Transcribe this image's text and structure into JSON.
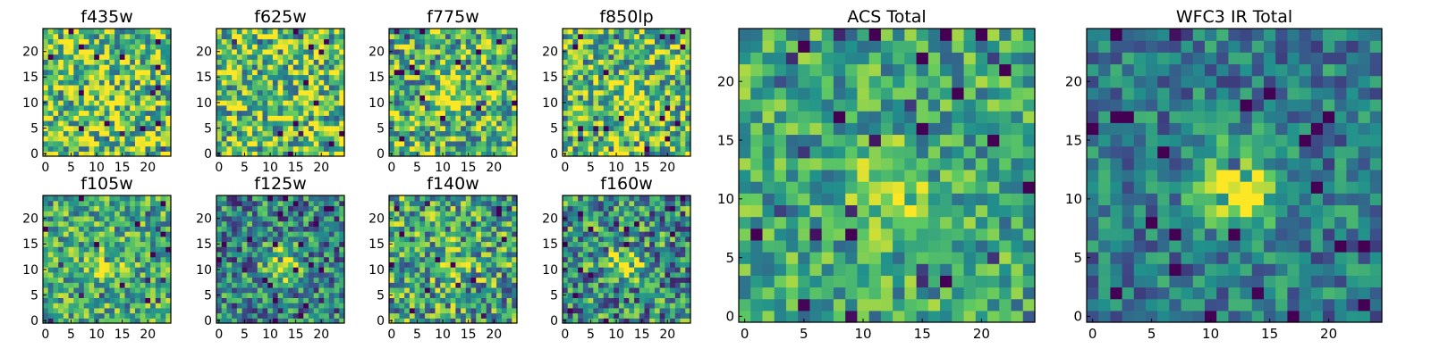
{
  "colors": {
    "colormap": [
      "#440154",
      "#3b528b",
      "#21918c",
      "#5ec962",
      "#fde725"
    ],
    "frame": "#000000",
    "background": "#ffffff"
  },
  "chart_data": [
    {
      "type": "heatmap",
      "title": "f435w",
      "grid_size": 25,
      "xlim": [
        0,
        24
      ],
      "ylim": [
        0,
        24
      ],
      "xticks": [
        "0",
        "5",
        "10",
        "15",
        "20"
      ],
      "yticks": [
        "0",
        "5",
        "10",
        "15",
        "20"
      ],
      "grid": false,
      "colormap": "viridis",
      "source_peak": [
        12,
        11
      ],
      "peak_strength": 0.05,
      "background_level": 0.75,
      "noise": 0.55
    },
    {
      "type": "heatmap",
      "title": "f625w",
      "grid_size": 25,
      "xlim": [
        0,
        24
      ],
      "ylim": [
        0,
        24
      ],
      "xticks": [
        "0",
        "5",
        "10",
        "15",
        "20"
      ],
      "yticks": [
        "0",
        "5",
        "10",
        "15",
        "20"
      ],
      "grid": false,
      "colormap": "viridis",
      "source_peak": [
        12,
        11
      ],
      "peak_strength": 0.08,
      "background_level": 0.72,
      "noise": 0.55
    },
    {
      "type": "heatmap",
      "title": "f775w",
      "grid_size": 25,
      "xlim": [
        0,
        24
      ],
      "ylim": [
        0,
        24
      ],
      "xticks": [
        "0",
        "5",
        "10",
        "15",
        "20"
      ],
      "yticks": [
        "0",
        "5",
        "10",
        "15",
        "20"
      ],
      "grid": false,
      "colormap": "viridis",
      "source_peak": [
        12,
        11
      ],
      "peak_strength": 0.3,
      "background_level": 0.65,
      "noise": 0.5
    },
    {
      "type": "heatmap",
      "title": "f850lp",
      "grid_size": 25,
      "xlim": [
        0,
        24
      ],
      "ylim": [
        0,
        24
      ],
      "xticks": [
        "0",
        "5",
        "10",
        "15",
        "20"
      ],
      "yticks": [
        "0",
        "5",
        "10",
        "15",
        "20"
      ],
      "grid": false,
      "colormap": "viridis",
      "source_peak": [
        13,
        11
      ],
      "peak_strength": 0.3,
      "background_level": 0.68,
      "noise": 0.5
    },
    {
      "type": "heatmap",
      "title": "f105w",
      "grid_size": 25,
      "xlim": [
        0,
        24
      ],
      "ylim": [
        0,
        24
      ],
      "xticks": [
        "0",
        "5",
        "10",
        "15",
        "20"
      ],
      "yticks": [
        "0",
        "5",
        "10",
        "15",
        "20"
      ],
      "grid": false,
      "colormap": "viridis",
      "source_peak": [
        12,
        11
      ],
      "peak_strength": 0.35,
      "background_level": 0.62,
      "noise": 0.4
    },
    {
      "type": "heatmap",
      "title": "f125w",
      "grid_size": 25,
      "xlim": [
        0,
        24
      ],
      "ylim": [
        0,
        24
      ],
      "xticks": [
        "0",
        "5",
        "10",
        "15",
        "20"
      ],
      "yticks": [
        "0",
        "5",
        "10",
        "15",
        "20"
      ],
      "grid": false,
      "colormap": "viridis",
      "source_peak": [
        12,
        11
      ],
      "peak_strength": 0.6,
      "background_level": 0.45,
      "noise": 0.45
    },
    {
      "type": "heatmap",
      "title": "f140w",
      "grid_size": 25,
      "xlim": [
        0,
        24
      ],
      "ylim": [
        0,
        24
      ],
      "xticks": [
        "0",
        "5",
        "10",
        "15",
        "20"
      ],
      "yticks": [
        "0",
        "5",
        "10",
        "15",
        "20"
      ],
      "grid": false,
      "colormap": "viridis",
      "source_peak": [
        12,
        11
      ],
      "peak_strength": 0.4,
      "background_level": 0.58,
      "noise": 0.5
    },
    {
      "type": "heatmap",
      "title": "f160w",
      "grid_size": 25,
      "xlim": [
        0,
        24
      ],
      "ylim": [
        0,
        24
      ],
      "xticks": [
        "0",
        "5",
        "10",
        "15",
        "20"
      ],
      "yticks": [
        "0",
        "5",
        "10",
        "15",
        "20"
      ],
      "grid": false,
      "colormap": "viridis",
      "source_peak": [
        12,
        11
      ],
      "peak_strength": 0.55,
      "background_level": 0.5,
      "noise": 0.5
    },
    {
      "type": "heatmap",
      "title": "ACS Total",
      "grid_size": 25,
      "xlim": [
        0,
        24
      ],
      "ylim": [
        0,
        24
      ],
      "xticks": [
        "0",
        "5",
        "10",
        "15",
        "20"
      ],
      "yticks": [
        "0",
        "5",
        "10",
        "15",
        "20"
      ],
      "grid": false,
      "colormap": "viridis",
      "source_peak": [
        12,
        11
      ],
      "peak_strength": 0.35,
      "background_level": 0.6,
      "noise": 0.35
    },
    {
      "type": "heatmap",
      "title": "WFC3 IR Total",
      "grid_size": 25,
      "xlim": [
        0,
        24
      ],
      "ylim": [
        0,
        24
      ],
      "xticks": [
        "0",
        "5",
        "10",
        "15",
        "20"
      ],
      "yticks": [
        "0",
        "5",
        "10",
        "15",
        "20"
      ],
      "grid": false,
      "colormap": "viridis",
      "source_peak": [
        12,
        11
      ],
      "peak_strength": 0.65,
      "background_level": 0.42,
      "noise": 0.3
    }
  ]
}
